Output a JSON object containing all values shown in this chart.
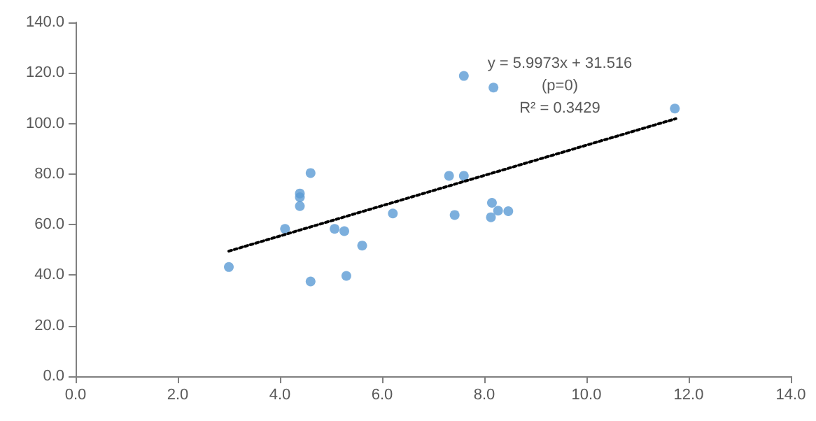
{
  "chart_data": {
    "type": "scatter",
    "series": [
      {
        "color": "#5b9bd5",
        "marker": "circle",
        "x": [
          3.0,
          4.1,
          4.39,
          4.39,
          4.39,
          4.6,
          4.6,
          5.07,
          5.26,
          5.3,
          5.61,
          6.21,
          7.31,
          7.6,
          7.42,
          7.6,
          8.18,
          8.15,
          8.27,
          8.47,
          8.13,
          11.73
        ],
        "values": [
          43.2,
          58.3,
          72.3,
          70.8,
          67.3,
          80.4,
          37.5,
          58.3,
          57.4,
          39.7,
          51.7,
          64.4,
          79.3,
          79.3,
          63.8,
          118.8,
          114.2,
          68.6,
          65.5,
          65.3,
          62.9,
          105.9
        ]
      },
      {
        "type": "line",
        "color": "#000000",
        "marker": "none",
        "line_style": "dotted",
        "x": [
          3.0,
          11.75
        ],
        "values": [
          49.5,
          101.9
        ]
      }
    ],
    "annotations": [
      "y = 5.9973x + 31.516",
      "(p=0)",
      "R² = 0.3429"
    ],
    "xlim": [
      0,
      14
    ],
    "xticks": [
      {
        "value": 0,
        "label": "0.0"
      },
      {
        "value": 2,
        "label": "2.0"
      },
      {
        "value": 4,
        "label": "4.0"
      },
      {
        "value": 6,
        "label": "6.0"
      },
      {
        "value": 8,
        "label": "8.0"
      },
      {
        "value": 10,
        "label": "10.0"
      },
      {
        "value": 12,
        "label": "12.0"
      },
      {
        "value": 14,
        "label": "14.0"
      }
    ],
    "ylim": [
      0,
      140
    ],
    "yticks": [
      {
        "value": 0,
        "label": "0.0"
      },
      {
        "value": 20,
        "label": "20.0"
      },
      {
        "value": 40,
        "label": "40.0"
      },
      {
        "value": 60,
        "label": "60.0"
      },
      {
        "value": 80,
        "label": "80.0"
      },
      {
        "value": 100,
        "label": "100.0"
      },
      {
        "value": 120,
        "label": "120.0"
      },
      {
        "value": 140,
        "label": "140.0"
      }
    ],
    "grid": false
  }
}
